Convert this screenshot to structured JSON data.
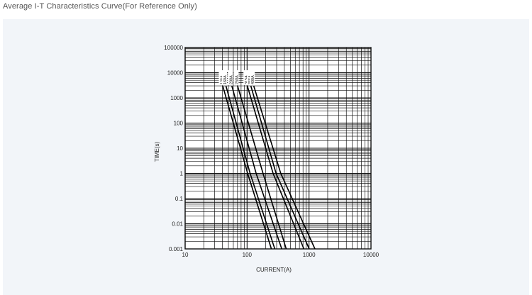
{
  "page": {
    "title": "Average I-T Characteristics Curve(For Reference Only)"
  },
  "chart_data": {
    "type": "line",
    "title": "",
    "xlabel": "CURRENT(A)",
    "ylabel": "TIME(s)",
    "xscale": "log",
    "yscale": "log",
    "xlim": [
      10,
      10000
    ],
    "ylim": [
      0.001,
      100000
    ],
    "grid": true,
    "x_tick_labels": [
      "10",
      "100",
      "1000",
      "10000"
    ],
    "y_tick_labels": [
      "0.001",
      "0.01",
      "0.1",
      "1",
      "10",
      "100",
      "1000",
      "10000",
      "100000"
    ],
    "series": [
      {
        "name": "125A",
        "x": [
          40.4,
          102,
          247
        ],
        "y": [
          3000,
          1,
          0.001
        ]
      },
      {
        "name": "160A",
        "x": [
          45.5,
          112,
          280
        ],
        "y": [
          3000,
          1,
          0.001
        ]
      },
      {
        "name": "200A",
        "x": [
          56.7,
          140,
          363
        ],
        "y": [
          3000,
          1,
          0.001
        ]
      },
      {
        "name": "250A",
        "x": [
          70.2,
          181,
          428
        ],
        "y": [
          3000,
          1,
          0.001
        ]
      },
      {
        "name": "315A",
        "x": [
          101,
          263,
          825
        ],
        "y": [
          3000,
          1,
          0.001
        ]
      },
      {
        "name": "355A",
        "x": [
          115,
          294,
          1006
        ],
        "y": [
          3000,
          1,
          0.001
        ]
      },
      {
        "name": "400A",
        "x": [
          128,
          350,
          1246
        ],
        "y": [
          3000,
          1,
          0.001
        ]
      }
    ]
  }
}
